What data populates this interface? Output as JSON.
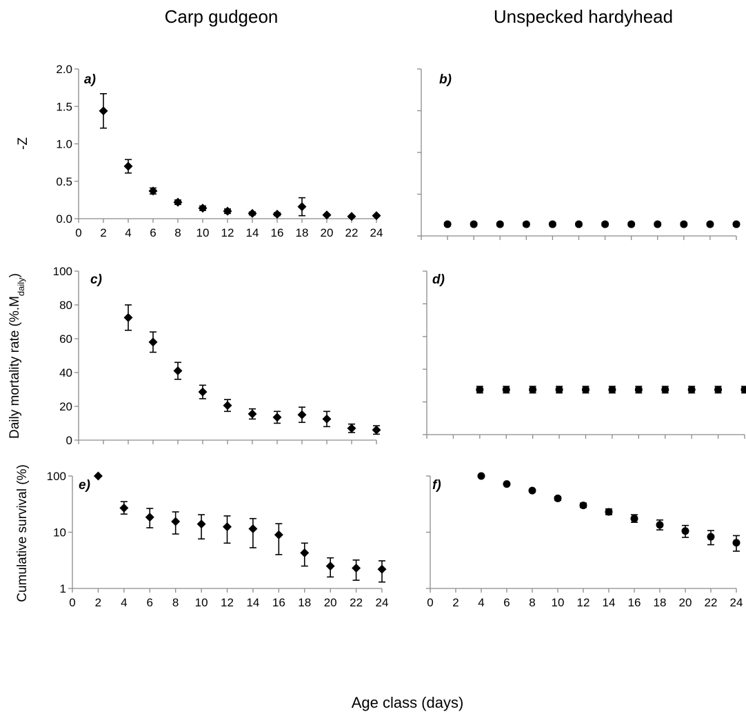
{
  "figure": {
    "col_titles": [
      "Carp gudgeon",
      "Unspecked hardyhead"
    ],
    "x_axis_label": "Age class (days)"
  },
  "chart_data": [
    {
      "id": "a",
      "panel_label": "a)",
      "type": "scatter",
      "marker": "diamond",
      "ylabel": "-Z",
      "xlim": [
        0,
        24
      ],
      "ylim": [
        0,
        2
      ],
      "yticks": [
        0,
        0.5,
        1,
        1.5,
        2
      ],
      "ytick_labels": [
        "0.0",
        "0.5",
        "1.0",
        "1.5",
        "2.0"
      ],
      "xticks": [
        0,
        2,
        4,
        6,
        8,
        10,
        12,
        14,
        16,
        18,
        20,
        22,
        24
      ],
      "show_tick_labels": true,
      "x": [
        2,
        4,
        6,
        8,
        10,
        12,
        14,
        16,
        18,
        20,
        22,
        24
      ],
      "y": [
        1.44,
        0.7,
        0.37,
        0.22,
        0.14,
        0.1,
        0.07,
        0.06,
        0.16,
        0.05,
        0.03,
        0.04
      ],
      "err": [
        0.23,
        0.09,
        0.04,
        0.03,
        0.03,
        0.03,
        0.02,
        0.02,
        0.12,
        0.01,
        0.01,
        0.01
      ]
    },
    {
      "id": "b",
      "panel_label": "b)",
      "type": "scatter",
      "marker": "circle",
      "ylabel": "",
      "xlim": [
        0,
        24
      ],
      "ylim": [
        0,
        2
      ],
      "yticks": [
        0,
        0.5,
        1,
        1.5,
        2
      ],
      "ytick_labels": [],
      "xticks": [
        0,
        2,
        4,
        6,
        8,
        10,
        12,
        14,
        16,
        18,
        20,
        22,
        24
      ],
      "show_tick_labels": false,
      "x": [
        2,
        4,
        6,
        8,
        10,
        12,
        14,
        16,
        18,
        20,
        22,
        24
      ],
      "y": [
        0.14,
        0.14,
        0.14,
        0.14,
        0.14,
        0.14,
        0.14,
        0.14,
        0.14,
        0.14,
        0.14,
        0.14
      ],
      "err": [
        0.02,
        0.02,
        0.02,
        0.02,
        0.02,
        0.02,
        0.02,
        0.02,
        0.02,
        0.02,
        0.02,
        0.02
      ]
    },
    {
      "id": "c",
      "panel_label": "c)",
      "type": "scatter",
      "marker": "diamond",
      "ylabel": "Daily mortality rate (%.M",
      "ylabel_sub": "daily",
      "ylabel_end": ")",
      "xlim": [
        0,
        24
      ],
      "ylim": [
        0,
        100
      ],
      "yticks": [
        0,
        20,
        40,
        60,
        80,
        100
      ],
      "ytick_labels": [
        "0",
        "20",
        "40",
        "60",
        "80",
        "100"
      ],
      "xticks": [
        0,
        2,
        4,
        6,
        8,
        10,
        12,
        14,
        16,
        18,
        20,
        22,
        24
      ],
      "show_tick_labels": false,
      "x": [
        4,
        6,
        8,
        10,
        12,
        14,
        16,
        18,
        20,
        22,
        24
      ],
      "y": [
        72.5,
        58,
        41,
        28.5,
        20.5,
        15.5,
        13.5,
        15,
        12.5,
        7,
        6
      ],
      "err": [
        7.5,
        6,
        5,
        4,
        3.5,
        3,
        3.5,
        4.5,
        4.5,
        2.5,
        2.5
      ]
    },
    {
      "id": "d",
      "panel_label": "d)",
      "type": "scatter",
      "marker": "circle",
      "ylabel": "",
      "xlim": [
        0,
        24
      ],
      "ylim": [
        0,
        100
      ],
      "yticks": [
        0,
        20,
        40,
        60,
        80,
        100
      ],
      "ytick_labels": [],
      "xticks": [
        0,
        2,
        4,
        6,
        8,
        10,
        12,
        14,
        16,
        18,
        20,
        22,
        24
      ],
      "show_tick_labels": false,
      "x": [
        4,
        6,
        8,
        10,
        12,
        14,
        16,
        18,
        20,
        22,
        24
      ],
      "y": [
        27.5,
        27.5,
        27.5,
        27.5,
        27.5,
        27.5,
        27.5,
        27.5,
        27.5,
        27.5,
        27.5
      ],
      "err": [
        2,
        2,
        2,
        2,
        2,
        2,
        2,
        2,
        2,
        2,
        2
      ]
    },
    {
      "id": "e",
      "panel_label": "e)",
      "type": "scatter",
      "marker": "diamond",
      "yscale": "log",
      "ylabel": "Cumulative  survival (%)",
      "xlim": [
        0,
        24
      ],
      "ylim": [
        1,
        100
      ],
      "yticks": [
        1,
        10,
        100
      ],
      "ytick_labels": [
        "1",
        "10",
        "100"
      ],
      "xticks": [
        0,
        2,
        4,
        6,
        8,
        10,
        12,
        14,
        16,
        18,
        20,
        22,
        24
      ],
      "show_tick_labels": true,
      "x": [
        2,
        4,
        6,
        8,
        10,
        12,
        14,
        16,
        18,
        20,
        22,
        24
      ],
      "y": [
        100,
        27,
        18.5,
        15.5,
        14,
        12.5,
        11.5,
        9,
        4.3,
        2.5,
        2.3,
        2.2
      ],
      "y_low": [
        100,
        21,
        12,
        9.3,
        7.6,
        6.4,
        5.3,
        4,
        2.5,
        1.6,
        1.4,
        1.3
      ],
      "y_high": [
        100,
        35,
        26.5,
        23,
        20.5,
        19.5,
        17.5,
        14.2,
        6.4,
        3.5,
        3.2,
        3.1
      ]
    },
    {
      "id": "f",
      "panel_label": "f)",
      "type": "scatter",
      "marker": "circle",
      "yscale": "log",
      "ylabel": "",
      "xlim": [
        0,
        24
      ],
      "ylim": [
        1,
        100
      ],
      "yticks": [
        1,
        10,
        100
      ],
      "ytick_labels": [],
      "xticks": [
        0,
        2,
        4,
        6,
        8,
        10,
        12,
        14,
        16,
        18,
        20,
        22,
        24
      ],
      "show_tick_labels": true,
      "x": [
        4,
        6,
        8,
        10,
        12,
        14,
        16,
        18,
        20,
        22,
        24
      ],
      "y": [
        100,
        72,
        55,
        40,
        30,
        23,
        17.5,
        13.5,
        10.5,
        8.3,
        6.5
      ],
      "y_low": [
        100,
        69,
        52,
        37,
        27.5,
        20.5,
        15,
        11,
        8.1,
        6,
        4.6
      ],
      "y_high": [
        100,
        75,
        58,
        43,
        33,
        26,
        20.5,
        16.5,
        13.2,
        10.7,
        8.7
      ]
    }
  ]
}
